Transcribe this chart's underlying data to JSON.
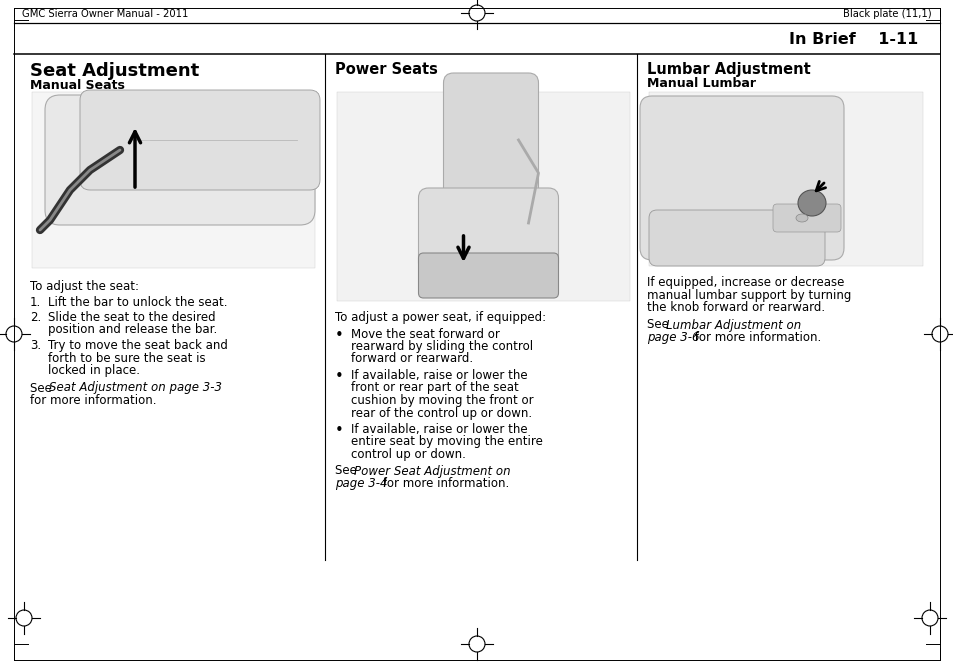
{
  "page_header_left": "GMC Sierra Owner Manual - 2011",
  "page_header_right": "Black plate (11,1)",
  "page_section": "In Brief",
  "page_number": "1-11",
  "col1_title": "Seat Adjustment",
  "col1_subtitle": "Manual Seats",
  "col2_title": "Power Seats",
  "col3_title": "Lumbar Adjustment",
  "col3_subtitle": "Manual Lumbar",
  "bg_color": "#ffffff",
  "text_color": "#000000",
  "col1_body_intro": "To adjust the seat:",
  "col1_item1": "Lift the bar to unlock the seat.",
  "col1_item2": "Slide the seat to the desired\nposition and release the bar.",
  "col1_item3": "Try to move the seat back and\nforth to be sure the seat is\nlocked in place.",
  "col1_see": "See ",
  "col1_see_italic": "Seat Adjustment on page 3-3",
  "col1_see_end": "for more information.",
  "col2_body_intro": "To adjust a power seat, if equipped:",
  "col2_bullet1": "Move the seat forward or\nrearward by sliding the control\nforward or rearward.",
  "col2_bullet2": "If available, raise or lower the\nfront or rear part of the seat\ncushion by moving the front or\nrear of the control up or down.",
  "col2_bullet3": "If available, raise or lower the\nentire seat by moving the entire\ncontrol up or down.",
  "col2_see": "See ",
  "col2_see_italic": "Power Seat Adjustment on\npage 3-4",
  "col2_see_end": " for more information.",
  "col3_body1": "If equipped, increase or decrease\nmanual lumbar support by turning\nthe knob forward or rearward.",
  "col3_see": "See ",
  "col3_see_italic": "Lumbar Adjustment on\npage 3-6",
  "col3_see_end": " for more information."
}
